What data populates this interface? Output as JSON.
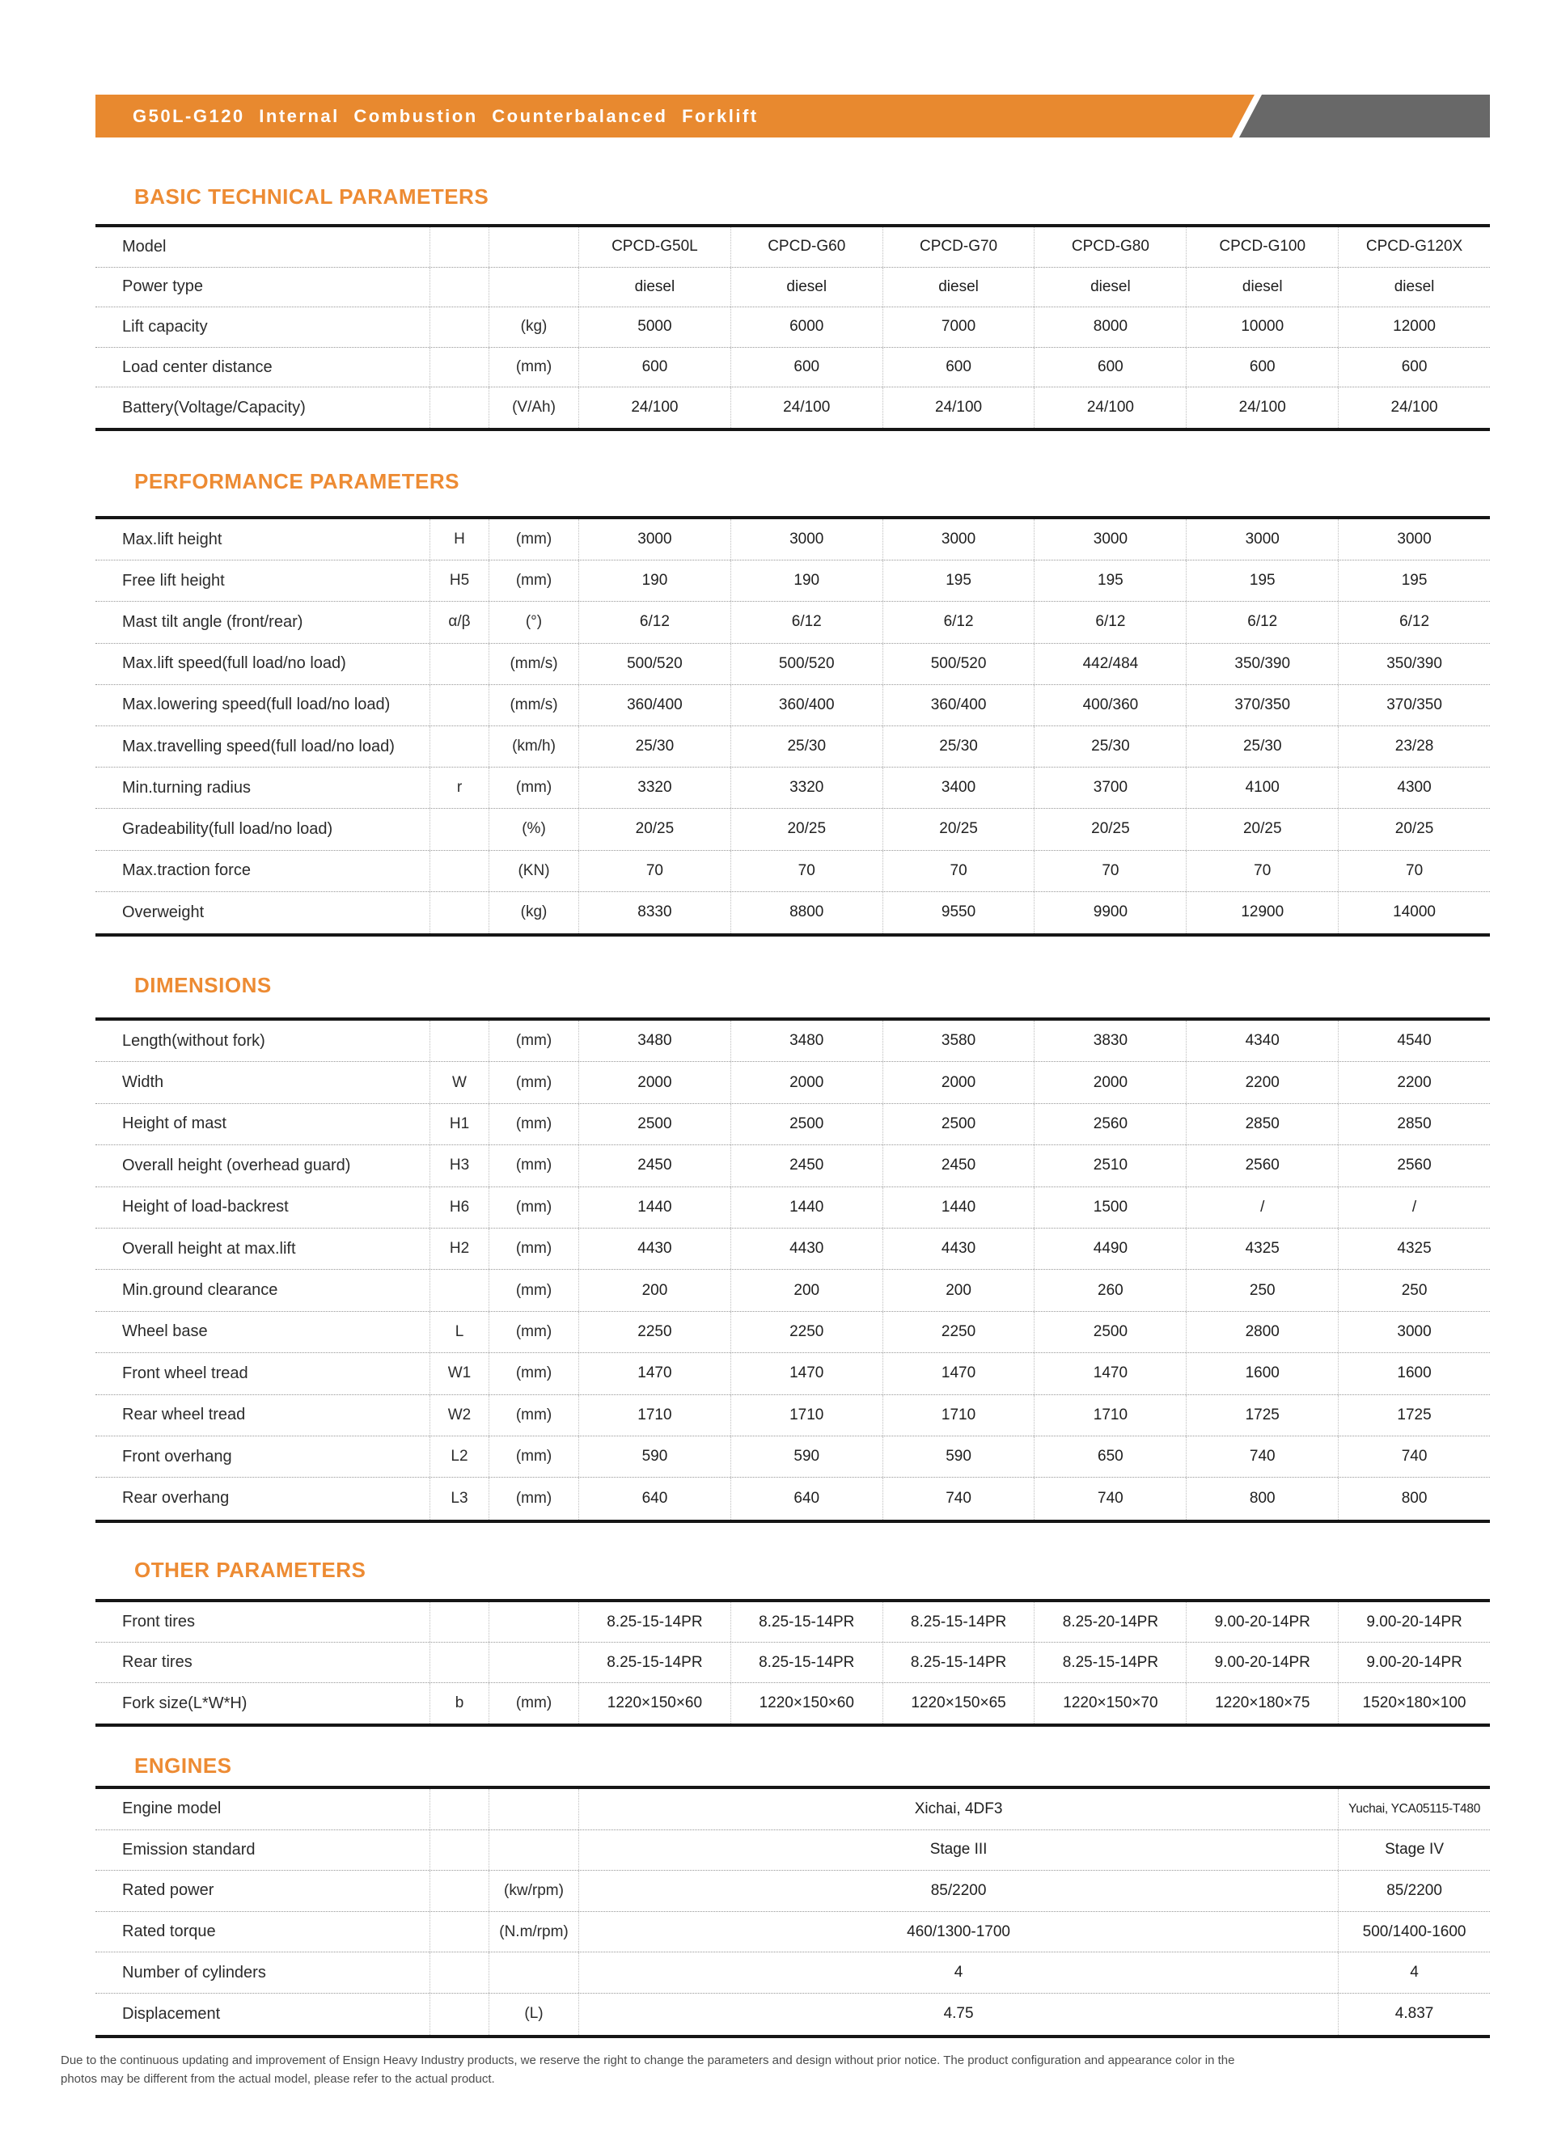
{
  "header": {
    "title": "G50L-G120 Internal Combustion Counterbalanced Forklift"
  },
  "colors": {
    "accent_orange": "#e8892f",
    "title_orange": "#ed8b33",
    "header_gray": "#686868"
  },
  "tables": [
    {
      "id": "basic",
      "title": "BASIC TECHNICAL PARAMETERS",
      "rows": [
        {
          "label": "Model",
          "symbol": "",
          "unit": "",
          "values": [
            "CPCD-G50L",
            "CPCD-G60",
            "CPCD-G70",
            "CPCD-G80",
            "CPCD-G100",
            "CPCD-G120X"
          ]
        },
        {
          "label": "Power type",
          "symbol": "",
          "unit": "",
          "values": [
            "diesel",
            "diesel",
            "diesel",
            "diesel",
            "diesel",
            "diesel"
          ]
        },
        {
          "label": "Lift capacity",
          "symbol": "",
          "unit": "(kg)",
          "values": [
            "5000",
            "6000",
            "7000",
            "8000",
            "10000",
            "12000"
          ]
        },
        {
          "label": "Load center distance",
          "symbol": "",
          "unit": "(mm)",
          "values": [
            "600",
            "600",
            "600",
            "600",
            "600",
            "600"
          ]
        },
        {
          "label": "Battery(Voltage/Capacity)",
          "symbol": "",
          "unit": "(V/Ah)",
          "values": [
            "24/100",
            "24/100",
            "24/100",
            "24/100",
            "24/100",
            "24/100"
          ]
        }
      ]
    },
    {
      "id": "performance",
      "title": "PERFORMANCE PARAMETERS",
      "rows": [
        {
          "label": "Max.lift height",
          "symbol": "H",
          "unit": "(mm)",
          "values": [
            "3000",
            "3000",
            "3000",
            "3000",
            "3000",
            "3000"
          ]
        },
        {
          "label": "Free lift height",
          "symbol": "H5",
          "unit": "(mm)",
          "values": [
            "190",
            "190",
            "195",
            "195",
            "195",
            "195"
          ]
        },
        {
          "label": "Mast tilt angle (front/rear)",
          "symbol": "α/β",
          "unit": "(°)",
          "values": [
            "6/12",
            "6/12",
            "6/12",
            "6/12",
            "6/12",
            "6/12"
          ]
        },
        {
          "label": "Max.lift speed(full load/no load)",
          "symbol": "",
          "unit": "(mm/s)",
          "values": [
            "500/520",
            "500/520",
            "500/520",
            "442/484",
            "350/390",
            "350/390"
          ]
        },
        {
          "label": "Max.lowering speed(full load/no load)",
          "symbol": "",
          "unit": "(mm/s)",
          "values": [
            "360/400",
            "360/400",
            "360/400",
            "400/360",
            "370/350",
            "370/350"
          ]
        },
        {
          "label": "Max.travelling speed(full load/no load)",
          "symbol": "",
          "unit": "(km/h)",
          "values": [
            "25/30",
            "25/30",
            "25/30",
            "25/30",
            "25/30",
            "23/28"
          ]
        },
        {
          "label": "Min.turning radius",
          "symbol": "r",
          "unit": "(mm)",
          "values": [
            "3320",
            "3320",
            "3400",
            "3700",
            "4100",
            "4300"
          ]
        },
        {
          "label": "Gradeability(full load/no load)",
          "symbol": "",
          "unit": "(%)",
          "values": [
            "20/25",
            "20/25",
            "20/25",
            "20/25",
            "20/25",
            "20/25"
          ]
        },
        {
          "label": "Max.traction force",
          "symbol": "",
          "unit": "(KN)",
          "values": [
            "70",
            "70",
            "70",
            "70",
            "70",
            "70"
          ]
        },
        {
          "label": "Overweight",
          "symbol": "",
          "unit": "(kg)",
          "values": [
            "8330",
            "8800",
            "9550",
            "9900",
            "12900",
            "14000"
          ]
        }
      ]
    },
    {
      "id": "dimensions",
      "title": "DIMENSIONS",
      "rows": [
        {
          "label": "Length(without fork)",
          "symbol": "",
          "unit": "(mm)",
          "values": [
            "3480",
            "3480",
            "3580",
            "3830",
            "4340",
            "4540"
          ]
        },
        {
          "label": "Width",
          "symbol": "W",
          "unit": "(mm)",
          "values": [
            "2000",
            "2000",
            "2000",
            "2000",
            "2200",
            "2200"
          ]
        },
        {
          "label": "Height of mast",
          "symbol": "H1",
          "unit": "(mm)",
          "values": [
            "2500",
            "2500",
            "2500",
            "2560",
            "2850",
            "2850"
          ]
        },
        {
          "label": "Overall height (overhead guard)",
          "symbol": "H3",
          "unit": "(mm)",
          "values": [
            "2450",
            "2450",
            "2450",
            "2510",
            "2560",
            "2560"
          ]
        },
        {
          "label": "Height of load-backrest",
          "symbol": "H6",
          "unit": "(mm)",
          "values": [
            "1440",
            "1440",
            "1440",
            "1500",
            "/",
            "/"
          ]
        },
        {
          "label": "Overall height at max.lift",
          "symbol": "H2",
          "unit": "(mm)",
          "values": [
            "4430",
            "4430",
            "4430",
            "4490",
            "4325",
            "4325"
          ]
        },
        {
          "label": "Min.ground clearance",
          "symbol": "",
          "unit": "(mm)",
          "values": [
            "200",
            "200",
            "200",
            "260",
            "250",
            "250"
          ]
        },
        {
          "label": "Wheel base",
          "symbol": "L",
          "unit": "(mm)",
          "values": [
            "2250",
            "2250",
            "2250",
            "2500",
            "2800",
            "3000"
          ]
        },
        {
          "label": "Front wheel tread",
          "symbol": "W1",
          "unit": "(mm)",
          "values": [
            "1470",
            "1470",
            "1470",
            "1470",
            "1600",
            "1600"
          ]
        },
        {
          "label": "Rear wheel tread",
          "symbol": "W2",
          "unit": "(mm)",
          "values": [
            "1710",
            "1710",
            "1710",
            "1710",
            "1725",
            "1725"
          ]
        },
        {
          "label": "Front overhang",
          "symbol": "L2",
          "unit": "(mm)",
          "values": [
            "590",
            "590",
            "590",
            "650",
            "740",
            "740"
          ]
        },
        {
          "label": "Rear overhang",
          "symbol": "L3",
          "unit": "(mm)",
          "values": [
            "640",
            "640",
            "740",
            "740",
            "800",
            "800"
          ]
        }
      ]
    },
    {
      "id": "other",
      "title": "OTHER PARAMETERS",
      "rows": [
        {
          "label": "Front tires",
          "symbol": "",
          "unit": "",
          "values": [
            "8.25-15-14PR",
            "8.25-15-14PR",
            "8.25-15-14PR",
            "8.25-20-14PR",
            "9.00-20-14PR",
            "9.00-20-14PR"
          ]
        },
        {
          "label": "Rear tires",
          "symbol": "",
          "unit": "",
          "values": [
            "8.25-15-14PR",
            "8.25-15-14PR",
            "8.25-15-14PR",
            "8.25-15-14PR",
            "9.00-20-14PR",
            "9.00-20-14PR"
          ]
        },
        {
          "label": "Fork size(L*W*H)",
          "symbol": "b",
          "unit": "(mm)",
          "values": [
            "1220×150×60",
            "1220×150×60",
            "1220×150×65",
            "1220×150×70",
            "1220×180×75",
            "1520×180×100"
          ]
        }
      ]
    },
    {
      "id": "engines",
      "title": "ENGINES",
      "value_spans": [
        5,
        1
      ],
      "rows": [
        {
          "label": "Engine model",
          "symbol": "",
          "unit": "",
          "values": [
            "Xichai,  4DF3",
            "Yuchai,  YCA05115-T480"
          ]
        },
        {
          "label": "Emission standard",
          "symbol": "",
          "unit": "",
          "values": [
            "Stage III",
            "Stage IV"
          ]
        },
        {
          "label": "Rated power",
          "symbol": "",
          "unit": "(kw/rpm)",
          "values": [
            "85/2200",
            "85/2200"
          ]
        },
        {
          "label": "Rated torque",
          "symbol": "",
          "unit": "(N.m/rpm)",
          "values": [
            "460/1300-1700",
            "500/1400-1600"
          ]
        },
        {
          "label": "Number of cylinders",
          "symbol": "",
          "unit": "",
          "values": [
            "4",
            "4"
          ]
        },
        {
          "label": "Displacement",
          "symbol": "",
          "unit": "(L)",
          "values": [
            "4.75",
            "4.837"
          ]
        }
      ]
    }
  ],
  "footer": {
    "line1": "Due to the continuous updating and improvement of Ensign Heavy Industry products, we reserve the right to change the parameters and design without prior notice. The product configuration and appearance color in the",
    "line2": "photos may be different from the actual model, please refer to the actual product."
  }
}
